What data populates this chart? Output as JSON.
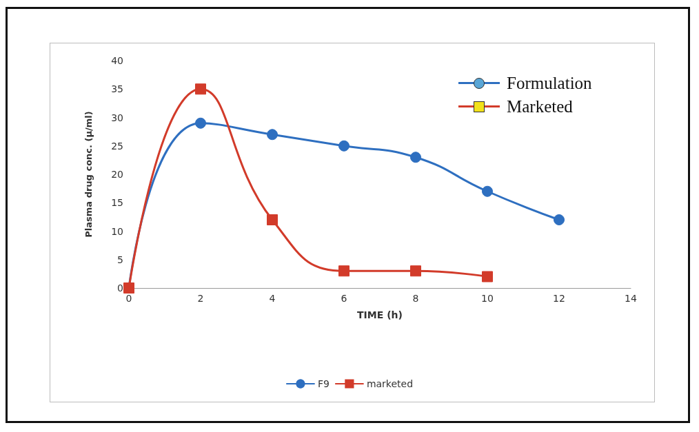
{
  "chart_data": {
    "type": "line",
    "xlabel": "TIME (h)",
    "ylabel": "Plasma drug conc. (µ/ml)",
    "series": [
      {
        "name": "F9",
        "color": "#2e6fc0",
        "marker": "circle",
        "x": [
          0,
          2,
          4,
          6,
          8,
          10,
          12
        ],
        "values": [
          0,
          29,
          27,
          25,
          23,
          17,
          12
        ]
      },
      {
        "name": "marketed",
        "color": "#d23b2a",
        "marker": "square",
        "x": [
          0,
          2,
          4,
          6,
          8,
          10
        ],
        "values": [
          0,
          35,
          12,
          3,
          3,
          2
        ]
      }
    ],
    "annotations": [
      "Formulation",
      "Marketed"
    ],
    "xlim": [
      0,
      14
    ],
    "xticks": [
      0,
      2,
      4,
      6,
      8,
      10,
      12,
      14
    ],
    "ylim": [
      0,
      40
    ],
    "yticks": [
      0,
      5,
      10,
      15,
      20,
      25,
      30,
      35,
      40
    ],
    "grid": false,
    "legend": "bottom",
    "line_style": "solid"
  }
}
